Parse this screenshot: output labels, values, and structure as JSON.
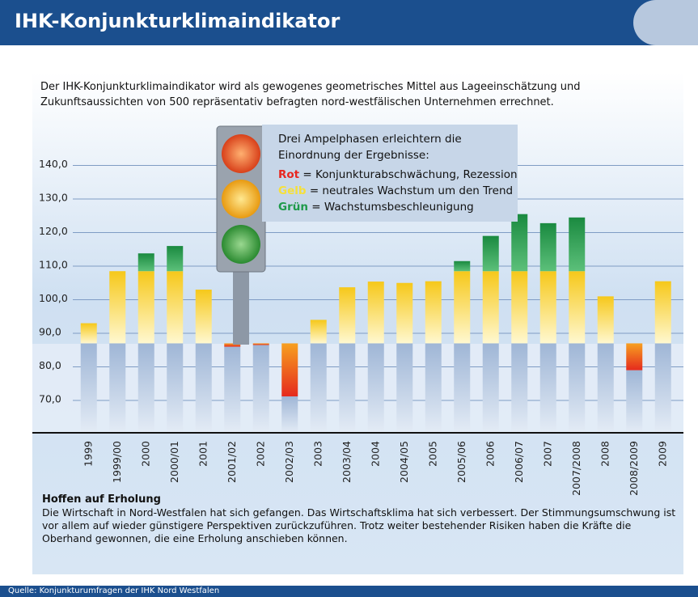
{
  "chart_data": {
    "type": "bar",
    "title": "IHK-Konjunkturklimaindikator",
    "subtitle": "Der IHK-Konjunkturklimaindikator wird als gewogenes geometrisches Mittel aus Lageeinschätzung und Zukunftsaussichten von 500 repräsentativ befragten nord-westfälischen Unternehmen errechnet.",
    "legend_title": "Drei Ampelphasen erleichtern die Einordnung der Ergebnisse:",
    "legend": [
      {
        "name": "Rot",
        "color": "#e8261f",
        "text": "= Konjunkturabschwächung, Rezession"
      },
      {
        "name": "Gelb",
        "color": "#f6e03a",
        "text": "= neutrales Wachstum um den Trend"
      },
      {
        "name": "Grün",
        "color": "#1f9a4a",
        "text": "= Wachstumsbeschleunigung"
      }
    ],
    "categories": [
      "1999",
      "1999/00",
      "2000",
      "2000/01",
      "2001",
      "2001/02",
      "2002",
      "2002/03",
      "2003",
      "2003/04",
      "2004",
      "2004/05",
      "2005",
      "2005/06",
      "2006",
      "2006/07",
      "2007",
      "2007/2008",
      "2008",
      "2008/2009",
      "2009"
    ],
    "values": [
      93,
      108.5,
      113.8,
      116,
      103,
      86,
      86.5,
      71.2,
      94,
      103.7,
      105.4,
      105,
      105.5,
      111.5,
      119,
      125.5,
      122.8,
      124.5,
      101,
      79,
      105.5
    ],
    "ylim": [
      60,
      152
    ],
    "yticks": [
      {
        "value": 70,
        "label": "70,0"
      },
      {
        "value": 80,
        "label": "80,0"
      },
      {
        "value": 90,
        "label": "90,0"
      },
      {
        "value": 100,
        "label": "100,0"
      },
      {
        "value": 110,
        "label": "110,0"
      },
      {
        "value": 120,
        "label": "120,0"
      },
      {
        "value": 130,
        "label": "130,0"
      },
      {
        "value": 140,
        "label": "140,0"
      }
    ],
    "grid": true,
    "note_title": "Hoffen auf Erholung",
    "note": "Die Wirtschaft in Nord-Westfalen hat sich gefangen. Das Wirtschaftsklima hat sich verbessert. Der Stimmungsumschwung ist vor allem auf wieder günstigere Perspektiven zurückzuführen. Trotz weiter bestehender Risiken haben die Kräfte die Oberhand gewonnen, die eine Erholung anschieben können.",
    "source": "Quelle: Konjunkturumfragen der IHK Nord Westfalen"
  }
}
